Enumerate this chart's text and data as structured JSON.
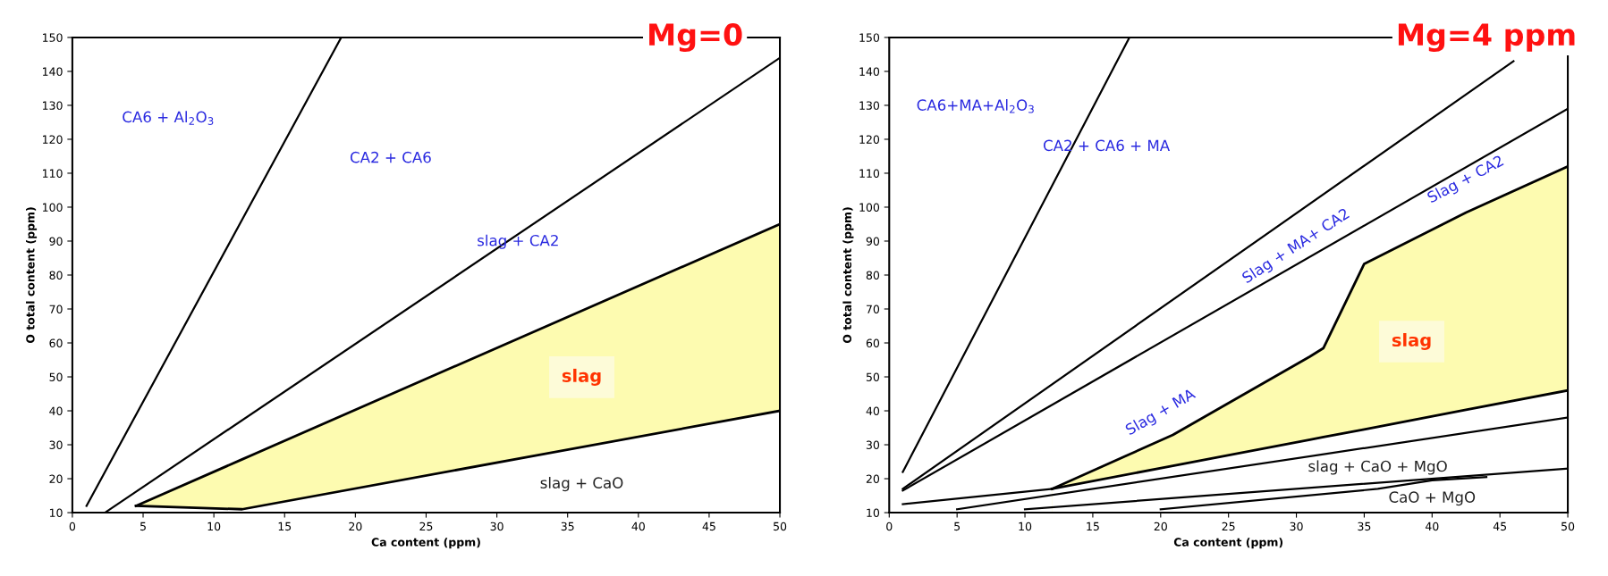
{
  "chart_data": [
    {
      "type": "line",
      "title": "Mg=0",
      "xlabel": "Ca content (ppm)",
      "ylabel": "O total content (ppm)",
      "xlim": [
        0,
        50
      ],
      "ylim": [
        10,
        150
      ],
      "xticks": [
        0,
        5,
        10,
        15,
        20,
        25,
        30,
        35,
        40,
        45,
        50
      ],
      "yticks": [
        10,
        20,
        30,
        40,
        50,
        60,
        70,
        80,
        90,
        100,
        110,
        120,
        130,
        140,
        150
      ],
      "grid": false,
      "legend": false,
      "marker": "none",
      "line_style": "solid",
      "series": [
        {
          "type": "area",
          "color": "#fdfbb0",
          "x": [
            4.5,
            12,
            50
          ],
          "values": [
            12,
            25.7,
            95
          ]
        },
        {
          "type": "area",
          "color": "#ffffff",
          "x": [
            4.5,
            12,
            50
          ],
          "values": [
            12,
            11,
            40
          ]
        },
        {
          "color": "#000000",
          "x": [
            1,
            19
          ],
          "values": [
            12,
            150
          ]
        },
        {
          "color": "#000000",
          "x": [
            2.3,
            50
          ],
          "values": [
            10,
            144
          ]
        }
      ],
      "annotations": [
        "CA6 + Al$_{2}$O$_{3}$",
        "CA2 + CA6",
        "slag + CA2",
        "slag",
        "slag + CaO"
      ]
    },
    {
      "type": "line",
      "title": "Mg=4 ppm",
      "xlabel": "Ca content (ppm)",
      "ylabel": "O total content (ppm)",
      "xlim": [
        0,
        50
      ],
      "ylim": [
        10,
        150
      ],
      "xticks": [
        0,
        5,
        10,
        15,
        20,
        25,
        30,
        35,
        40,
        45,
        50
      ],
      "yticks": [
        10,
        20,
        30,
        40,
        50,
        60,
        70,
        80,
        90,
        100,
        110,
        120,
        130,
        140,
        150
      ],
      "grid": false,
      "legend": false,
      "marker": "none",
      "line_style": "solid",
      "series": [
        {
          "type": "area",
          "color": "#fdfbb0",
          "x": [
            12,
            20.9,
            31,
            32,
            35,
            42.5,
            50
          ],
          "values": [
            17,
            32.9,
            56,
            58.5,
            83.3,
            98.4,
            112
          ]
        },
        {
          "type": "area",
          "color": "#ffffff",
          "x": [
            12,
            20.9,
            31,
            32,
            35,
            42.5,
            50
          ],
          "values": [
            17,
            23.8,
            31.5,
            32.3,
            34.5,
            40.3,
            46
          ]
        },
        {
          "color": "#000000",
          "x": [
            1,
            17.7
          ],
          "values": [
            22,
            150
          ]
        },
        {
          "color": "#000000",
          "x": [
            1,
            46
          ],
          "values": [
            17,
            143
          ]
        },
        {
          "color": "#000000",
          "x": [
            1,
            50
          ],
          "values": [
            16.5,
            129
          ]
        },
        {
          "color": "#000000",
          "x": [
            1,
            12
          ],
          "values": [
            12.5,
            17
          ]
        },
        {
          "color": "#000000",
          "x": [
            5,
            50
          ],
          "values": [
            11,
            38
          ]
        },
        {
          "color": "#000000",
          "x": [
            10,
            50
          ],
          "values": [
            11,
            23
          ]
        },
        {
          "color": "#000000",
          "x": [
            20,
            36,
            40,
            44
          ],
          "values": [
            11,
            17,
            19.5,
            20.5
          ]
        }
      ],
      "annotations": [
        "CA6+MA+Al$_{2}$O$_{3}$",
        "CA2 + CA6 + MA",
        "Slag + MA+ CA2",
        "Slag + CA2",
        "Slag + MA",
        "slag",
        "slag + CaO + MgO",
        "CaO + MgO"
      ]
    }
  ]
}
